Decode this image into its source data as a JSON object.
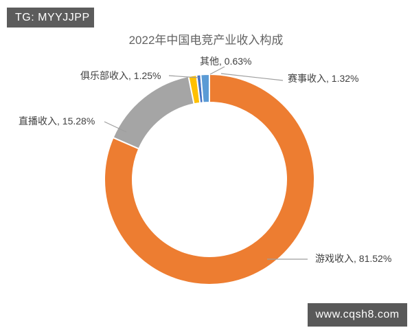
{
  "watermarks": {
    "top_left": "TG: MYYJJPP",
    "bottom_right": "www.cqsh8.com"
  },
  "chart_data": {
    "type": "pie",
    "subtype": "donut",
    "title": "2022年中国电竞产业收入构成",
    "start_angle_deg": 0,
    "direction": "clockwise",
    "hole_ratio": 0.73,
    "legend": "none",
    "unit": "%",
    "categories": [
      "游戏收入",
      "直播收入",
      "俱乐部收入",
      "其他",
      "赛事收入"
    ],
    "values": [
      81.52,
      15.28,
      1.25,
      0.63,
      1.32
    ],
    "colors": [
      "#ED7D31",
      "#A5A5A5",
      "#FFC000",
      "#4472C4",
      "#5B9BD5"
    ],
    "callouts": [
      {
        "text": "其他, 0.63%"
      },
      {
        "text": "俱乐部收入, 1.25%"
      },
      {
        "text": "赛事收入, 1.32%"
      },
      {
        "text": "直播收入, 15.28%"
      },
      {
        "text": "游戏收入, 81.52%"
      }
    ]
  }
}
